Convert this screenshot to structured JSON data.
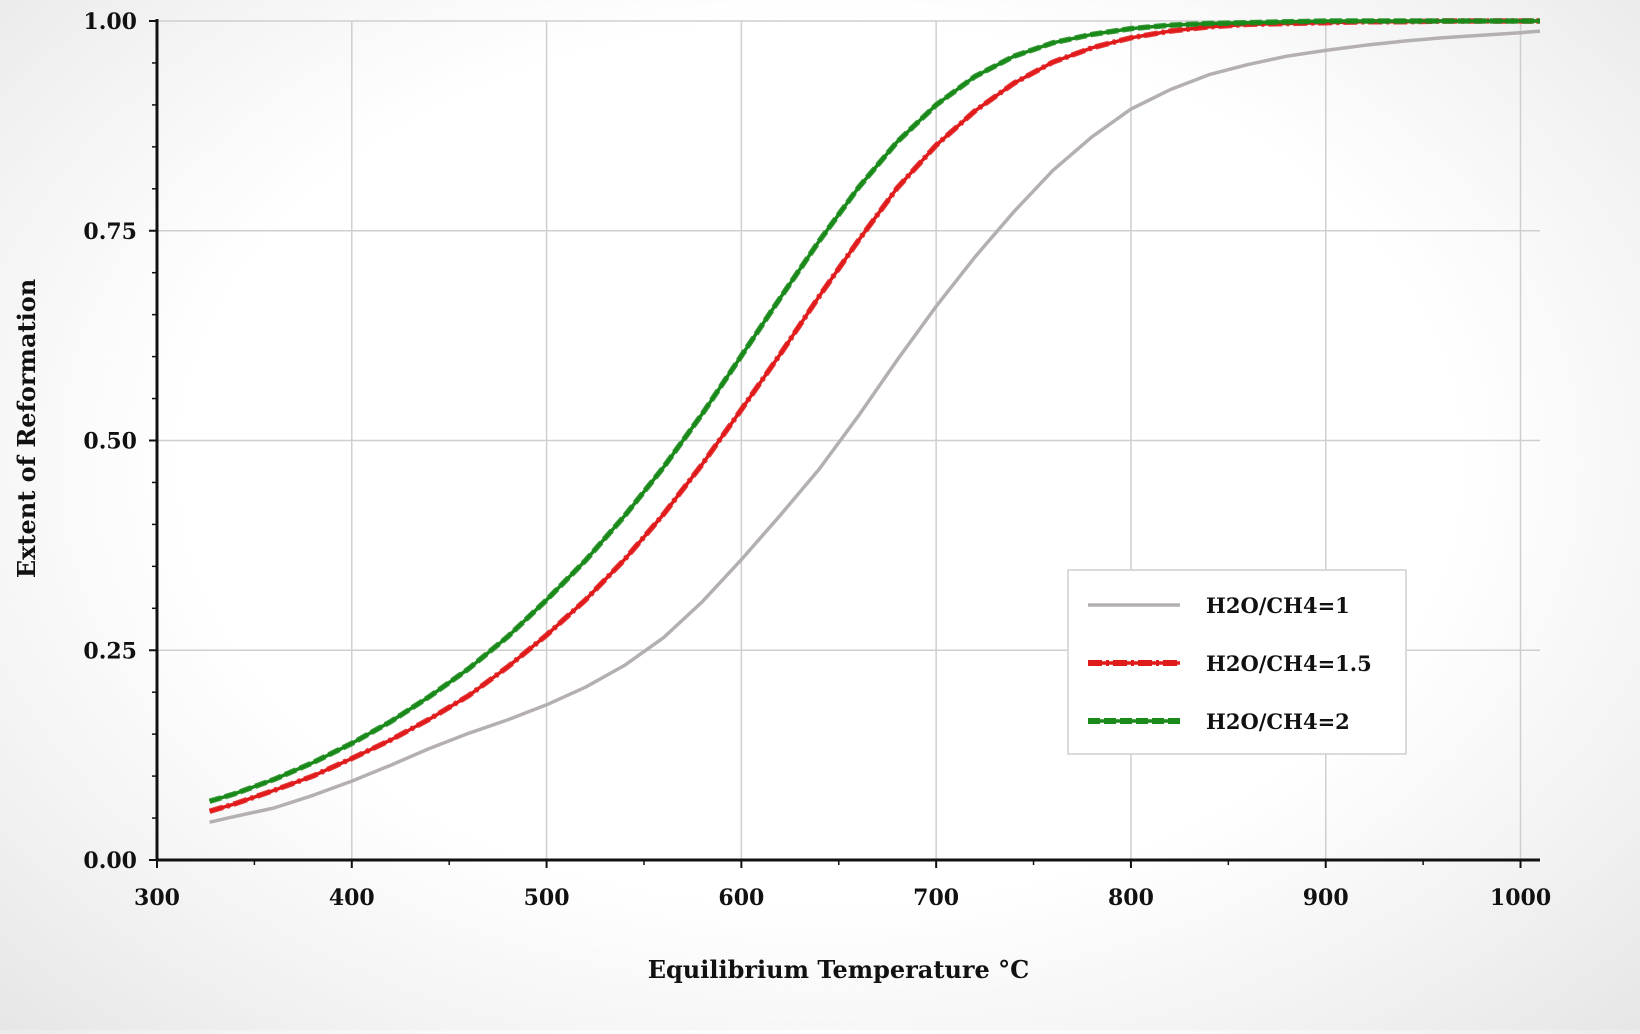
{
  "chart_data": {
    "type": "line",
    "xlabel": "Equilibrium Temperature °C",
    "ylabel": "Extent of Reformation",
    "xlim": [
      300,
      1010
    ],
    "ylim": [
      0,
      1.0
    ],
    "x_ticks": [
      "300",
      "400",
      "500",
      "600",
      "700",
      "800",
      "900",
      "1000"
    ],
    "y_ticks": [
      "0.00",
      "0.25",
      "0.50",
      "0.75",
      "1.00"
    ],
    "grid": true,
    "legend_position": "lower-right",
    "x": [
      327,
      340,
      360,
      380,
      400,
      420,
      440,
      460,
      480,
      500,
      520,
      540,
      560,
      580,
      600,
      620,
      640,
      660,
      680,
      700,
      720,
      740,
      760,
      780,
      800,
      820,
      840,
      860,
      880,
      900,
      920,
      940,
      960,
      980,
      1000,
      1010
    ],
    "series": [
      {
        "name": "H2O/CH4=1",
        "color": "#b5b0b0",
        "style": "solid",
        "values": [
          0.045,
          0.052,
          0.062,
          0.077,
          0.094,
          0.113,
          0.133,
          0.151,
          0.167,
          0.185,
          0.206,
          0.232,
          0.265,
          0.308,
          0.358,
          0.411,
          0.466,
          0.529,
          0.596,
          0.66,
          0.719,
          0.773,
          0.822,
          0.862,
          0.895,
          0.918,
          0.936,
          0.948,
          0.958,
          0.965,
          0.971,
          0.976,
          0.98,
          0.983,
          0.986,
          0.988
        ]
      },
      {
        "name": "H2O/CH4=1.5",
        "color": "#e01b1b",
        "style": "dash-dot",
        "values": [
          0.058,
          0.067,
          0.083,
          0.1,
          0.121,
          0.143,
          0.168,
          0.196,
          0.23,
          0.268,
          0.31,
          0.358,
          0.412,
          0.472,
          0.537,
          0.603,
          0.672,
          0.738,
          0.801,
          0.852,
          0.893,
          0.926,
          0.951,
          0.968,
          0.98,
          0.988,
          0.993,
          0.996,
          0.997,
          0.998,
          0.999,
          0.999,
          1.0,
          1.0,
          1.0,
          1.0
        ]
      },
      {
        "name": "H2O/CH4=2",
        "color": "#1a8a1a",
        "style": "dashed",
        "values": [
          0.07,
          0.079,
          0.096,
          0.116,
          0.139,
          0.165,
          0.195,
          0.228,
          0.266,
          0.31,
          0.357,
          0.41,
          0.468,
          0.532,
          0.601,
          0.67,
          0.738,
          0.801,
          0.856,
          0.9,
          0.934,
          0.958,
          0.974,
          0.984,
          0.991,
          0.995,
          0.997,
          0.998,
          0.999,
          1.0,
          1.0,
          1.0,
          1.0,
          1.0,
          1.0,
          1.0
        ]
      }
    ]
  }
}
